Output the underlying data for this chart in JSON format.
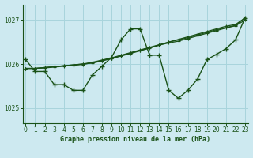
{
  "title": "Graphe pression niveau de la mer (hPa)",
  "bg_color": "#cde9f0",
  "grid_color": "#a8d4dc",
  "line_color": "#1a5218",
  "label_color": "#1a5218",
  "x_ticks": [
    0,
    1,
    2,
    3,
    4,
    5,
    6,
    7,
    8,
    9,
    10,
    11,
    12,
    13,
    14,
    15,
    16,
    17,
    18,
    19,
    20,
    21,
    22,
    23
  ],
  "y_ticks": [
    1025,
    1026,
    1027
  ],
  "ylim": [
    1024.65,
    1027.35
  ],
  "xlim": [
    -0.3,
    23.3
  ],
  "series": {
    "jagged": [
      1026.1,
      1025.83,
      1025.83,
      1025.53,
      1025.53,
      1025.4,
      1025.4,
      1025.75,
      1025.95,
      1026.15,
      1026.55,
      1026.8,
      1026.8,
      1026.2,
      1026.2,
      1025.4,
      1025.22,
      1025.4,
      1025.65,
      1026.1,
      1026.22,
      1026.35,
      1026.55,
      1027.05
    ],
    "diag1": [
      1025.9,
      1025.9,
      1025.92,
      1025.94,
      1025.96,
      1025.98,
      1026.0,
      1026.02,
      1026.07,
      1026.12,
      1026.18,
      1026.24,
      1026.3,
      1026.36,
      1026.43,
      1026.5,
      1026.56,
      1026.62,
      1026.68,
      1026.74,
      1026.8,
      1026.86,
      1026.9,
      1027.05
    ],
    "diag2": [
      1025.9,
      1025.9,
      1025.92,
      1025.94,
      1025.96,
      1025.98,
      1026.0,
      1026.04,
      1026.09,
      1026.14,
      1026.2,
      1026.26,
      1026.32,
      1026.38,
      1026.44,
      1026.5,
      1026.55,
      1026.6,
      1026.66,
      1026.72,
      1026.78,
      1026.83,
      1026.88,
      1027.05
    ],
    "diag3": [
      1025.9,
      1025.9,
      1025.91,
      1025.93,
      1025.95,
      1025.97,
      1025.99,
      1026.03,
      1026.08,
      1026.13,
      1026.19,
      1026.25,
      1026.31,
      1026.37,
      1026.43,
      1026.48,
      1026.52,
      1026.58,
      1026.64,
      1026.7,
      1026.76,
      1026.82,
      1026.87,
      1027.0
    ]
  }
}
